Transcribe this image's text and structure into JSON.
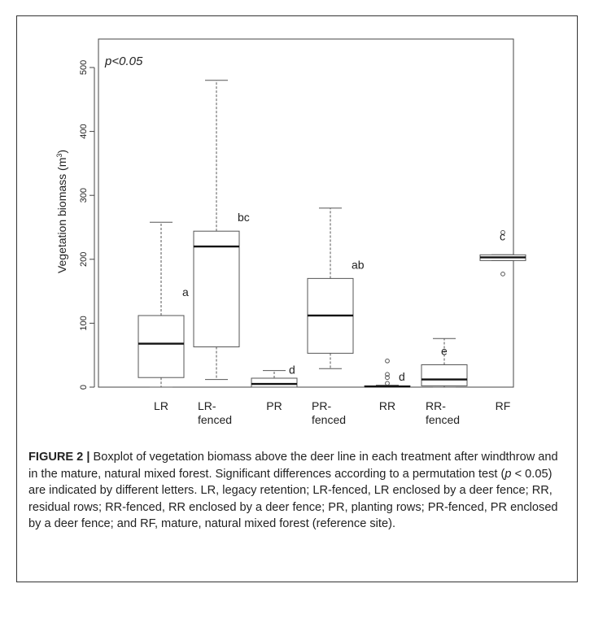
{
  "chart_data": {
    "type": "box",
    "annotation": "p<0.05",
    "ylabel": "Vegetation biomass (m³)",
    "ylabel_main": "Vegetation biomass (m",
    "ylabel_sup": "3",
    "ylabel_close": ")",
    "ylim": [
      0,
      500
    ],
    "yticks": [
      0,
      100,
      200,
      300,
      400,
      500
    ],
    "grid": false,
    "categories": [
      {
        "label_lines": [
          "LR"
        ],
        "whisker_low": 0,
        "q1": 15,
        "median": 68,
        "q3": 112,
        "whisker_high": 258,
        "outliers": [],
        "letter": "a"
      },
      {
        "label_lines": [
          "LR-",
          "fenced"
        ],
        "whisker_low": 12,
        "q1": 63,
        "median": 220,
        "q3": 244,
        "whisker_high": 480,
        "outliers": [],
        "letter": "bc"
      },
      {
        "label_lines": [
          "PR"
        ],
        "whisker_low": 0,
        "q1": 0,
        "median": 5,
        "q3": 14,
        "whisker_high": 26,
        "outliers": [],
        "letter": "d"
      },
      {
        "label_lines": [
          "PR-",
          "fenced"
        ],
        "whisker_low": 29,
        "q1": 53,
        "median": 112,
        "q3": 170,
        "whisker_high": 280,
        "outliers": [],
        "letter": "ab"
      },
      {
        "label_lines": [
          "RR"
        ],
        "whisker_low": 0,
        "q1": 0,
        "median": 1,
        "q3": 2,
        "whisker_high": 3,
        "outliers": [
          6,
          15,
          20,
          41
        ],
        "letter": "d"
      },
      {
        "label_lines": [
          "RR-",
          "fenced"
        ],
        "whisker_low": 0,
        "q1": 2,
        "median": 12,
        "q3": 35,
        "whisker_high": 76,
        "outliers": [],
        "letter": "e"
      },
      {
        "label_lines": [
          "RF"
        ],
        "whisker_low": 198,
        "q1": 198,
        "median": 203,
        "q3": 207,
        "whisker_high": 207,
        "outliers": [
          177,
          242
        ],
        "letter": "c"
      }
    ]
  },
  "caption": {
    "label": "FIGURE 2",
    "separator": "|",
    "text_1": " Boxplot of vegetation biomass above the deer line in each treatment after windthrow and in the mature, natural mixed forest. Significant differences according to a permutation test (",
    "p_symbol": "p",
    "text_2": " < 0.05) are indicated by different letters. LR, legacy retention; LR-fenced, LR enclosed by a deer fence; RR, residual rows; RR-fenced, RR enclosed by a deer fence; PR, planting rows; PR-fenced, PR enclosed by a deer fence; and RF, mature, natural mixed forest (reference site)."
  },
  "colors": {
    "axis": "#444444",
    "box": "#555555",
    "median": "#111111",
    "text": "#222222"
  }
}
